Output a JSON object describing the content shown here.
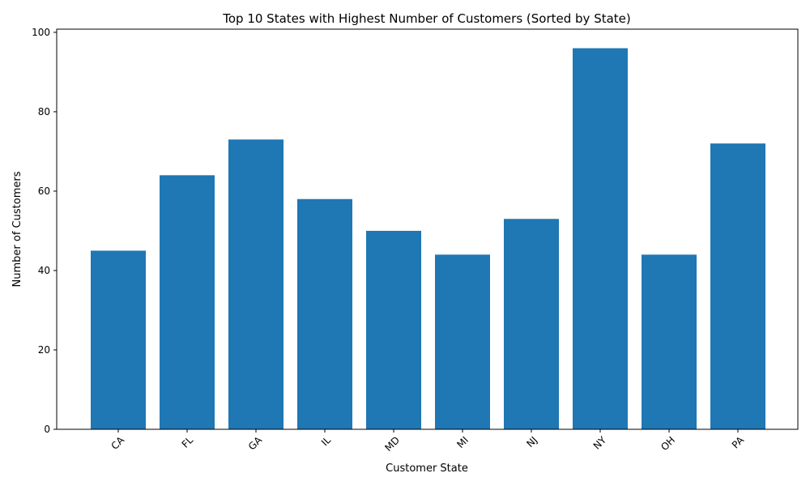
{
  "chart_data": {
    "type": "bar",
    "title": "Top 10 States with Highest Number of Customers (Sorted by State)",
    "xlabel": "Customer State",
    "ylabel": "Number of Customers",
    "categories": [
      "CA",
      "FL",
      "GA",
      "IL",
      "MD",
      "MI",
      "NJ",
      "NY",
      "OH",
      "PA"
    ],
    "values": [
      45,
      64,
      73,
      58,
      50,
      44,
      53,
      96,
      44,
      72
    ],
    "ylim": [
      0,
      100.8
    ],
    "yticks": [
      0,
      20,
      40,
      60,
      80,
      100
    ],
    "xtick_rotation": 45,
    "grid": false,
    "colors": {
      "bar": "#1f77b4"
    }
  }
}
